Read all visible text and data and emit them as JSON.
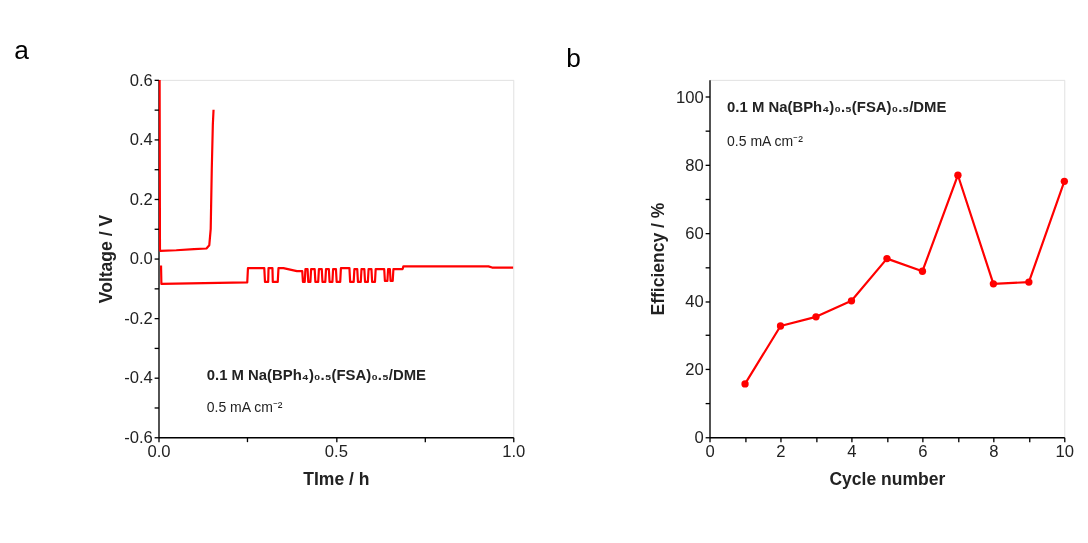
{
  "chart_data": [
    {
      "type": "line",
      "title": "a",
      "xlabel": "TIme / h",
      "ylabel": "Voltage / V",
      "annotations": [
        "0.1 M Na(BPh₄)₀.₅(FSA)₀.₅/DME",
        "0.5 mA cm⁻²"
      ],
      "xlim": [
        0,
        1
      ],
      "ylim": [
        -0.6,
        0.6
      ],
      "xticks": [
        {
          "value": 0,
          "label": "0.0"
        },
        {
          "value": 0.25,
          "label": null
        },
        0.5,
        {
          "value": 0.75,
          "label": null
        },
        {
          "value": 1,
          "label": "1.0"
        }
      ],
      "yticks": [
        -0.6,
        {
          "value": -0.5,
          "label": null
        },
        -0.4,
        {
          "value": -0.3,
          "label": null
        },
        -0.2,
        {
          "value": -0.1,
          "label": null
        },
        {
          "value": 0,
          "label": "0.0"
        },
        {
          "value": 0.1,
          "label": null
        },
        0.2,
        {
          "value": 0.3,
          "label": null
        },
        0.4,
        {
          "value": 0.5,
          "label": null
        },
        0.6
      ],
      "grid": false,
      "legend": false,
      "marker": "none",
      "line_style": "solid",
      "series": [
        {
          "color": "#ff0000",
          "x": [
            0.003,
            0.004,
            0.005,
            0.05,
            0.1,
            0.135,
            0.143,
            0.147,
            0.15,
            0.153,
            0.155
          ],
          "values": [
            0.6,
            0.03,
            0.026,
            0.028,
            0.032,
            0.034,
            0.045,
            0.1,
            0.3,
            0.45,
            0.5
          ]
        },
        {
          "color": "#ff0000",
          "x": [
            0.007,
            0.008,
            0.25,
            0.252,
            0.298,
            0.3,
            0.309,
            0.31,
            0.321,
            0.322,
            0.336,
            0.338,
            0.352,
            0.39,
            0.405,
            0.407,
            0.412,
            0.414,
            0.42,
            0.422,
            0.428,
            0.43,
            0.44,
            0.442,
            0.45,
            0.452,
            0.46,
            0.462,
            0.47,
            0.472,
            0.48,
            0.482,
            0.49,
            0.492,
            0.5,
            0.502,
            0.512,
            0.514,
            0.538,
            0.54,
            0.55,
            0.552,
            0.56,
            0.562,
            0.57,
            0.572,
            0.58,
            0.582,
            0.59,
            0.592,
            0.6,
            0.602,
            0.61,
            0.612,
            0.636,
            0.638,
            0.645,
            0.647,
            0.652,
            0.654,
            0.66,
            0.662,
            0.688,
            0.69,
            0.93,
            0.94,
            1.0
          ],
          "values": [
            -0.023,
            -0.085,
            -0.08,
            -0.032,
            -0.032,
            -0.078,
            -0.078,
            -0.032,
            -0.032,
            -0.078,
            -0.078,
            -0.032,
            -0.032,
            -0.042,
            -0.042,
            -0.078,
            -0.078,
            -0.035,
            -0.035,
            -0.078,
            -0.078,
            -0.035,
            -0.035,
            -0.078,
            -0.078,
            -0.035,
            -0.035,
            -0.078,
            -0.078,
            -0.035,
            -0.035,
            -0.078,
            -0.078,
            -0.035,
            -0.035,
            -0.078,
            -0.078,
            -0.032,
            -0.032,
            -0.078,
            -0.078,
            -0.035,
            -0.035,
            -0.078,
            -0.078,
            -0.035,
            -0.035,
            -0.078,
            -0.078,
            -0.035,
            -0.035,
            -0.078,
            -0.078,
            -0.035,
            -0.035,
            -0.075,
            -0.075,
            -0.035,
            -0.035,
            -0.075,
            -0.075,
            -0.035,
            -0.035,
            -0.026,
            -0.026,
            -0.03,
            -0.03
          ]
        }
      ]
    },
    {
      "type": "line",
      "title": "b",
      "xlabel": "Cycle number",
      "ylabel": "Efficiency / %",
      "annotations": [
        "0.1 M Na(BPh₄)₀.₅(FSA)₀.₅/DME",
        "0.5 mA cm⁻²"
      ],
      "xlim": [
        0,
        10
      ],
      "ylim": [
        0,
        105
      ],
      "xticks": [
        0,
        {
          "value": 1,
          "label": null
        },
        2,
        {
          "value": 3,
          "label": null
        },
        4,
        {
          "value": 5,
          "label": null
        },
        6,
        {
          "value": 7,
          "label": null
        },
        8,
        {
          "value": 9,
          "label": null
        },
        10
      ],
      "yticks": [
        0,
        {
          "value": 10,
          "label": null
        },
        20,
        {
          "value": 30,
          "label": null
        },
        40,
        {
          "value": 50,
          "label": null
        },
        60,
        {
          "value": 70,
          "label": null
        },
        80,
        {
          "value": 90,
          "label": null
        },
        100
      ],
      "grid": false,
      "legend": false,
      "marker": "circle",
      "line_style": "solid",
      "series": [
        {
          "color": "#ff0000",
          "x": [
            1,
            2,
            3,
            4,
            5,
            6,
            7,
            8,
            9,
            10
          ],
          "values": [
            15.7,
            32.7,
            35.4,
            40.1,
            52.5,
            48.8,
            77.0,
            45.1,
            45.6,
            75.2
          ]
        }
      ]
    }
  ]
}
